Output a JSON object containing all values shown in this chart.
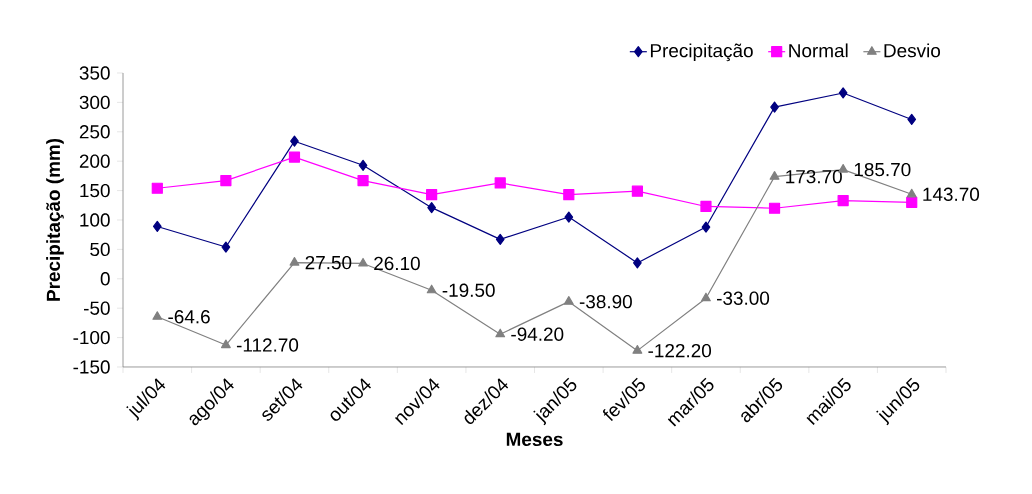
{
  "chart_data": {
    "type": "line",
    "xlabel": "Meses",
    "ylabel": "Precipitação (mm)",
    "categories": [
      "jul/04",
      "ago/04",
      "set/04",
      "out/04",
      "nov/04",
      "dez/04",
      "jan/05",
      "fev/05",
      "mar/05",
      "abr/05",
      "mai/05",
      "jun/05"
    ],
    "ylim": [
      -150,
      350
    ],
    "yticks": [
      -150,
      -100,
      -50,
      0,
      50,
      100,
      150,
      200,
      250,
      300,
      350
    ],
    "legend": "top right",
    "grid": false,
    "series": [
      {
        "name": "Precipitação",
        "color": "#000080",
        "marker": "diamond",
        "values": [
          89,
          54,
          234,
          193,
          121,
          67,
          105,
          27,
          88,
          292,
          316,
          271
        ]
      },
      {
        "name": "Normal",
        "color": "#ff00ff",
        "marker": "square",
        "values": [
          154,
          167,
          207,
          167,
          143,
          163,
          143,
          149,
          123,
          120,
          133,
          130
        ]
      },
      {
        "name": "Desvio",
        "color": "#808080",
        "marker": "triangle",
        "values": [
          -64.6,
          -112.7,
          27.5,
          26.1,
          -19.5,
          -94.2,
          -38.9,
          -122.2,
          -33.0,
          173.7,
          185.7,
          143.7
        ],
        "value_labels": [
          "-64.6",
          "-112.70",
          "27.50",
          "26.10",
          "-19.50",
          "-94.20",
          "-38.90",
          "-122.20",
          "-33.00",
          "173.70",
          "185.70",
          "143.70"
        ]
      }
    ]
  }
}
